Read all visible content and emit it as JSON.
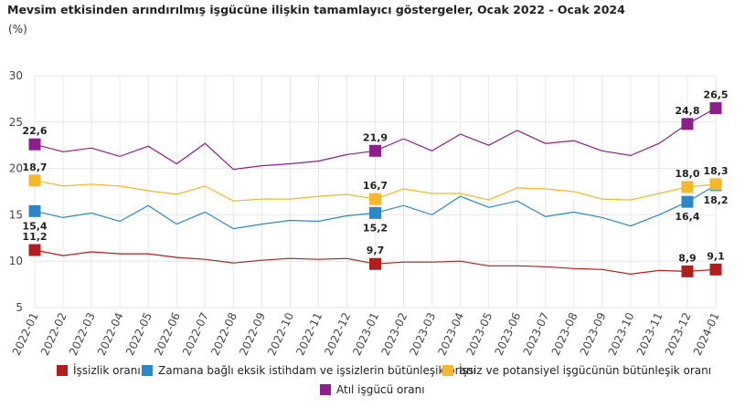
{
  "title": "Mevsim etkisinden arındırılmış işgücüne ilişkin tamamlayıcı göstergeler, Ocak 2022 - Ocak 2024",
  "unit_label": "(%)",
  "chart_data": {
    "type": "line",
    "title": "Mevsim etkisinden arındırılmış işgücüne ilişkin tamamlayıcı göstergeler, Ocak 2022 - Ocak 2024",
    "ylabel": "(%)",
    "ylim": [
      5,
      30
    ],
    "yticks": [
      5,
      10,
      15,
      20,
      25,
      30
    ],
    "grid": true,
    "legend_position": "bottom",
    "categories": [
      "2022-01",
      "2022-02",
      "2022-03",
      "2022-04",
      "2022-05",
      "2022-06",
      "2022-07",
      "2022-08",
      "2022-09",
      "2022-10",
      "2022-11",
      "2022-12",
      "2023-01",
      "2023-02",
      "2023-03",
      "2023-04",
      "2023-05",
      "2023-06",
      "2023-07",
      "2023-08",
      "2023-09",
      "2023-10",
      "2023-11",
      "2023-12",
      "2024-01"
    ],
    "series": [
      {
        "name": "İşsizlik oranı",
        "color": "#b01e1e",
        "labelPos": "above",
        "values": [
          11.2,
          10.6,
          11.0,
          10.8,
          10.8,
          10.4,
          10.2,
          9.8,
          10.1,
          10.3,
          10.2,
          10.3,
          9.7,
          9.9,
          9.9,
          10.0,
          9.5,
          9.5,
          9.4,
          9.2,
          9.1,
          8.6,
          9.0,
          8.9,
          9.1
        ],
        "labeled": {
          "0": "11,2",
          "12": "9,7",
          "23": "8,9",
          "24": "9,1"
        }
      },
      {
        "name": "Zamana bağlı eksik istihdam ve işsizlerin bütünleşik oranı",
        "color": "#2b87c9",
        "labelPos": "below",
        "values": [
          15.4,
          14.7,
          15.2,
          14.3,
          16.0,
          14.0,
          15.3,
          13.5,
          14.0,
          14.4,
          14.3,
          14.9,
          15.2,
          16.0,
          15.0,
          17.0,
          15.8,
          16.5,
          14.8,
          15.3,
          14.7,
          13.8,
          15.0,
          16.4,
          18.2
        ],
        "labeled": {
          "0": "15,4",
          "12": "15,2",
          "23": "16,4",
          "24": "18,2"
        }
      },
      {
        "name": "İşsiz ve potansiyel işgücünün bütünleşik oranı",
        "color": "#f5b72c",
        "labelPos": "above",
        "values": [
          18.7,
          18.1,
          18.3,
          18.1,
          17.6,
          17.2,
          18.1,
          16.5,
          16.7,
          16.7,
          17.0,
          17.2,
          16.7,
          17.8,
          17.3,
          17.3,
          16.6,
          17.9,
          17.8,
          17.5,
          16.7,
          16.6,
          17.3,
          18.0,
          18.3
        ],
        "labeled": {
          "0": "18,7",
          "12": "16,7",
          "23": "18,0",
          "24": "18,3"
        }
      },
      {
        "name": "Atıl işgücü oranı",
        "color": "#8e1e8c",
        "labelPos": "above",
        "values": [
          22.6,
          21.8,
          22.2,
          21.3,
          22.4,
          20.5,
          22.7,
          19.9,
          20.3,
          20.5,
          20.8,
          21.5,
          21.9,
          23.2,
          21.9,
          23.7,
          22.5,
          24.1,
          22.7,
          23.0,
          21.9,
          21.4,
          22.7,
          24.8,
          26.5
        ],
        "labeled": {
          "0": "22,6",
          "12": "21,9",
          "23": "24,8",
          "24": "26,5"
        }
      }
    ]
  }
}
